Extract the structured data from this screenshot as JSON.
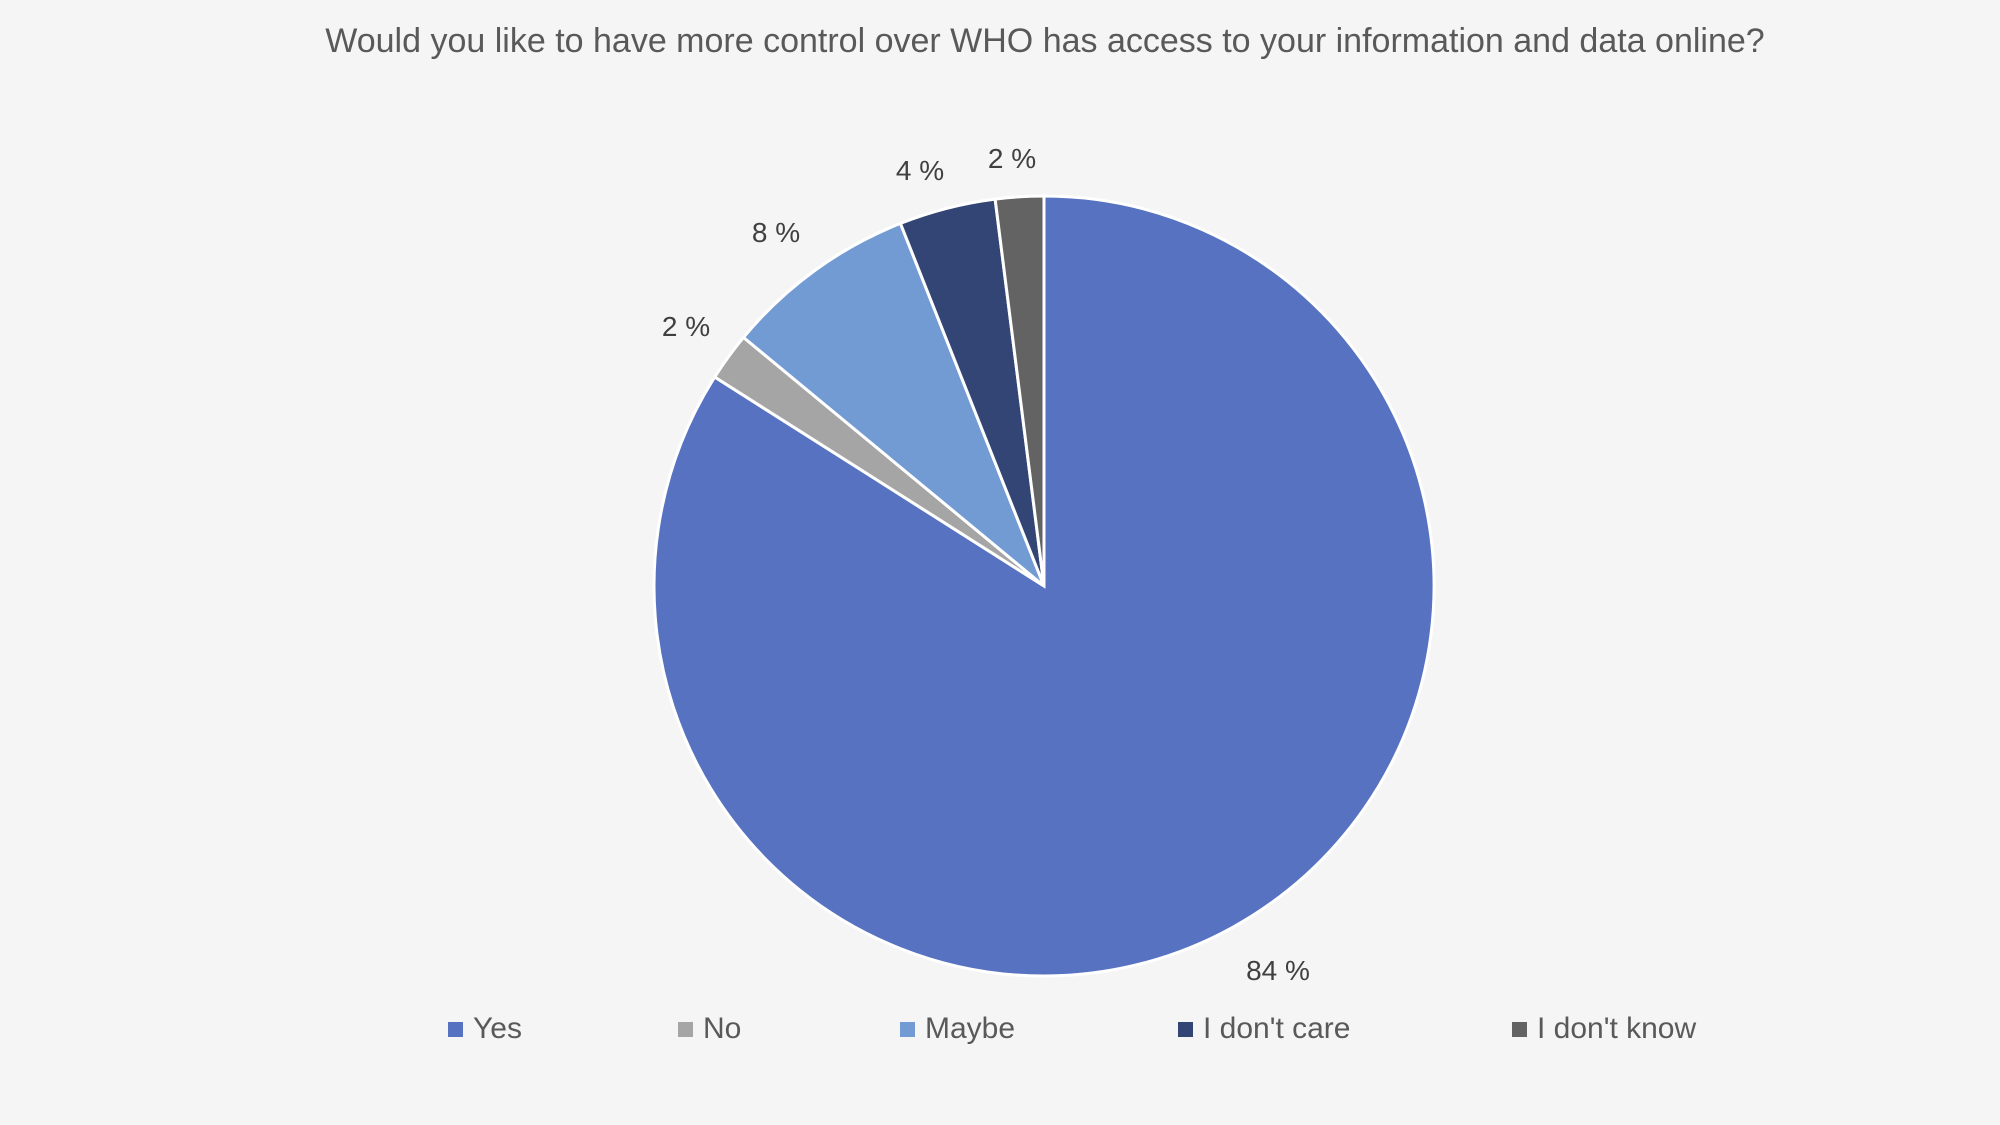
{
  "chart_data": {
    "type": "pie",
    "title": "Would you like to have more control over WHO has access to your information and data online?",
    "slices": [
      {
        "label": "Yes",
        "value": 84,
        "display": "84 %",
        "color": "#5672c1"
      },
      {
        "label": "No",
        "value": 2,
        "display": "2 %",
        "color": "#a5a5a5"
      },
      {
        "label": "Maybe",
        "value": 8,
        "display": "8 %",
        "color": "#729bd3"
      },
      {
        "label": "I don't care",
        "value": 4,
        "display": "4 %",
        "color": "#334575"
      },
      {
        "label": "I don't know",
        "value": 2,
        "display": "2 %",
        "color": "#636363"
      }
    ],
    "legend_position": "bottom",
    "start_angle": "12 o'clock",
    "direction": "clockwise"
  }
}
